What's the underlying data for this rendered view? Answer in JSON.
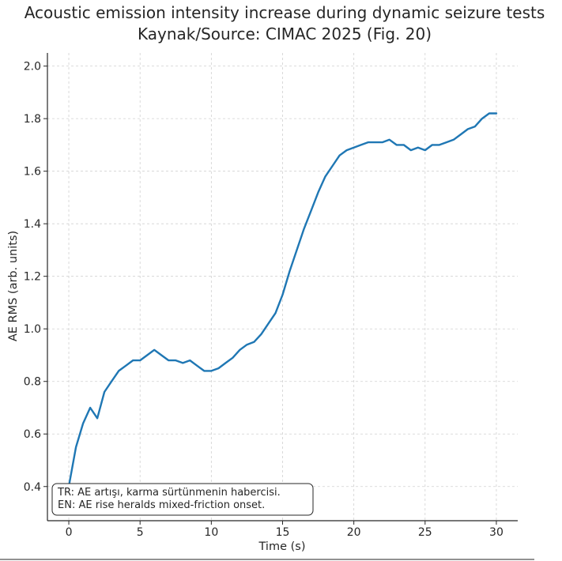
{
  "chart_data": {
    "type": "line",
    "title": "Acoustic emission intensity increase during dynamic seizure tests",
    "subtitle": "Kaynak/Source: CIMAC 2025 (Fig. 20)",
    "xlabel": "Time (s)",
    "ylabel": "AE RMS (arb. units)",
    "xlim": [
      -1.5,
      31.5
    ],
    "ylim": [
      0.27,
      2.05
    ],
    "xticks": [
      0,
      5,
      10,
      15,
      20,
      25,
      30
    ],
    "xtick_labels": [
      "0",
      "5",
      "10",
      "15",
      "20",
      "25",
      "30"
    ],
    "yticks": [
      0.4,
      0.6,
      0.8,
      1.0,
      1.2,
      1.4,
      1.6,
      1.8,
      2.0
    ],
    "ytick_labels": [
      "0.4",
      "0.6",
      "0.8",
      "1.0",
      "1.2",
      "1.4",
      "1.6",
      "1.8",
      "2.0"
    ],
    "grid": true,
    "line_color": "#1f77b4",
    "series": [
      {
        "x": [
          0,
          0.5,
          1,
          1.5,
          2,
          2.5,
          3,
          3.5,
          4,
          4.5,
          5,
          5.5,
          6,
          6.5,
          7,
          7.5,
          8,
          8.5,
          9,
          9.5,
          10,
          10.5,
          11,
          11.5,
          12,
          12.5,
          13,
          13.5,
          14,
          14.5,
          15,
          15.5,
          16,
          16.5,
          17,
          17.5,
          18,
          18.5,
          19,
          19.5,
          20,
          20.5,
          21,
          21.5,
          22,
          22.5,
          23,
          23.5,
          24,
          24.5,
          25,
          25.5,
          26,
          26.5,
          27,
          27.5,
          28,
          28.5,
          29,
          29.5,
          30
        ],
        "y": [
          0.4,
          0.55,
          0.64,
          0.7,
          0.66,
          0.76,
          0.8,
          0.84,
          0.86,
          0.88,
          0.88,
          0.9,
          0.92,
          0.9,
          0.88,
          0.88,
          0.87,
          0.88,
          0.86,
          0.84,
          0.84,
          0.85,
          0.87,
          0.89,
          0.92,
          0.94,
          0.95,
          0.98,
          1.02,
          1.06,
          1.13,
          1.22,
          1.3,
          1.38,
          1.45,
          1.52,
          1.58,
          1.62,
          1.66,
          1.68,
          1.69,
          1.7,
          1.71,
          1.71,
          1.71,
          1.72,
          1.7,
          1.7,
          1.68,
          1.69,
          1.68,
          1.7,
          1.7,
          1.71,
          1.72,
          1.74,
          1.76,
          1.77,
          1.8,
          1.82,
          1.82
        ]
      }
    ],
    "annotation": {
      "line1": "TR: AE artışı, karma sürtünmenin habercisi.",
      "line2": "EN: AE rise heralds mixed-friction onset.",
      "position": "bottom-left"
    }
  }
}
